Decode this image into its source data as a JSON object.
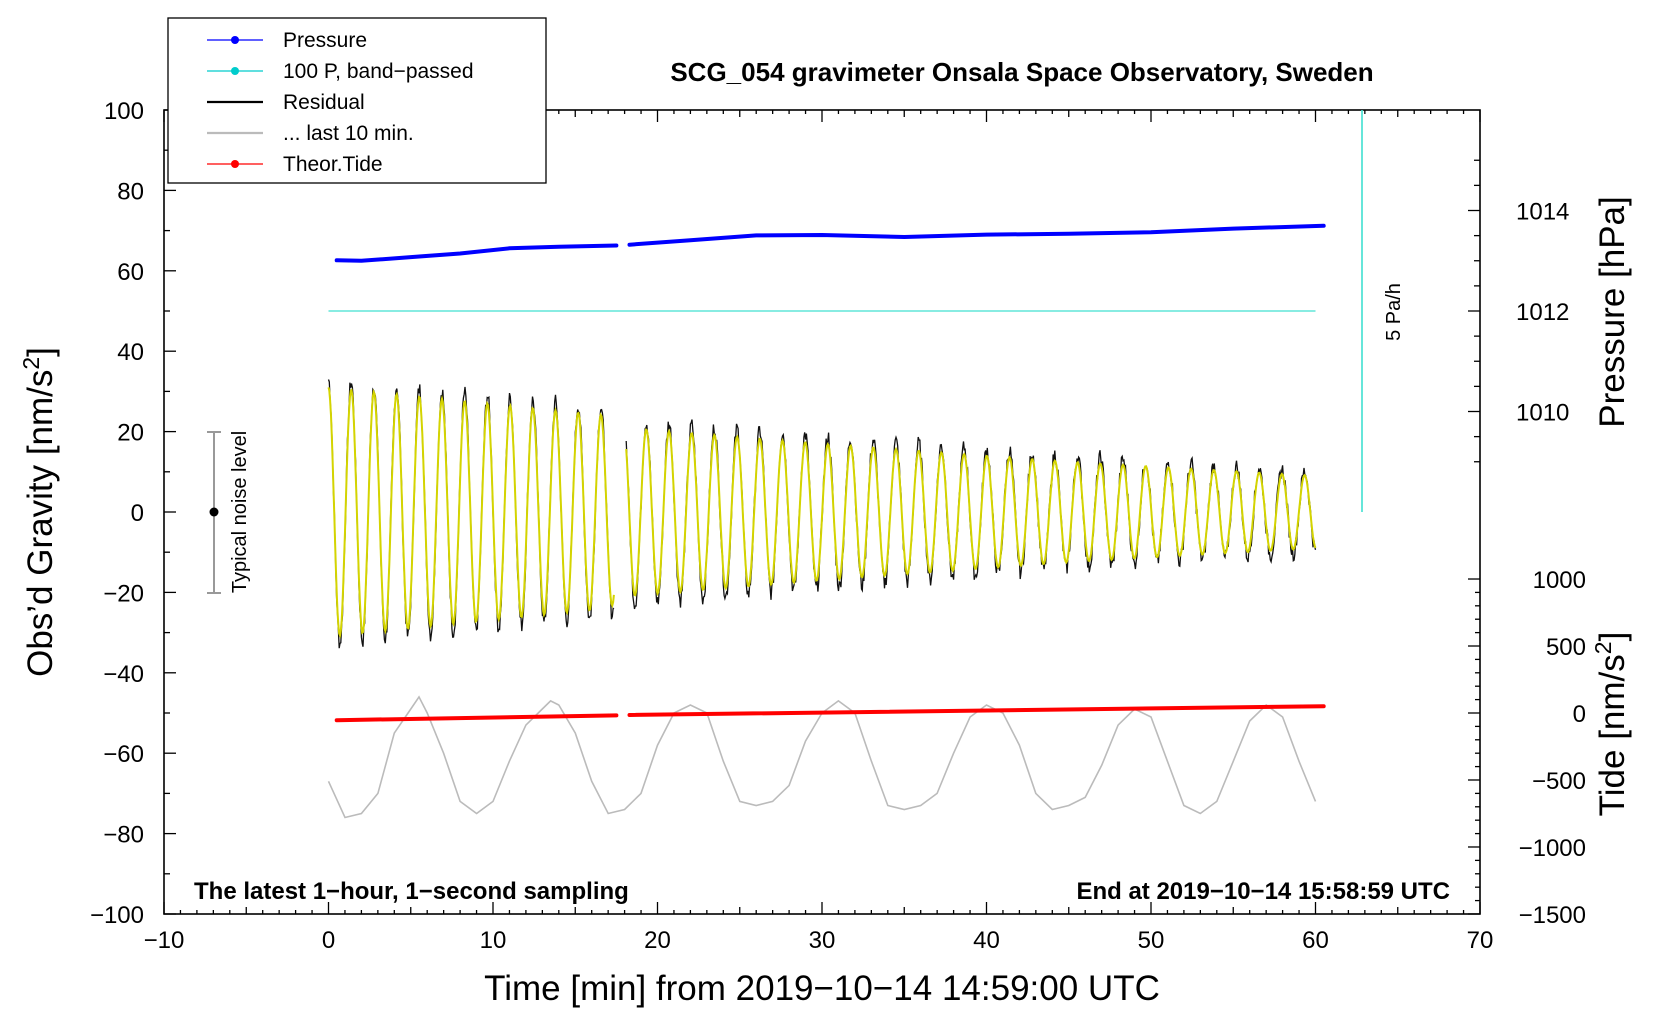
{
  "chart_data": {
    "type": "line",
    "title": "SCG_054 gravimeter Onsala Space Observatory, Sweden",
    "xlabel": "Time [min] from 2019−10−14 14:59:00 UTC",
    "ylabel_left": "Obs’d Gravity [nm/s",
    "ylabel_left_sup": "2",
    "ylabel_left_end": "]",
    "ylabel_right_pressure": "Pressure [hPa]",
    "ylabel_right_tide": "Tide [nm/s",
    "ylabel_right_tide_sup": "2",
    "ylabel_right_tide_end": "]",
    "xlim": [
      -10,
      70
    ],
    "ylim": [
      -100,
      100
    ],
    "x_ticks": [
      -10,
      0,
      10,
      20,
      30,
      40,
      50,
      60,
      70
    ],
    "x_tick_labels": [
      "−10",
      "0",
      "10",
      "20",
      "30",
      "40",
      "50",
      "60",
      "70"
    ],
    "y_ticks": [
      -100,
      -80,
      -60,
      -40,
      -20,
      0,
      20,
      40,
      60,
      80,
      100
    ],
    "y_tick_labels": [
      "−100",
      "−80",
      "−60",
      "−40",
      "−20",
      "0",
      "20",
      "40",
      "60",
      "80",
      "100"
    ],
    "pressure_axis": {
      "ticks": [
        1010,
        1012,
        1014
      ],
      "tick_labels": [
        "1010",
        "1012",
        "1014"
      ],
      "gravity_at_1012": 50,
      "gravity_per_hPa": 12.5
    },
    "tide_axis": {
      "ticks": [
        -1500,
        -1000,
        -500,
        0,
        500,
        1000
      ],
      "tick_labels": [
        "−1500",
        "−1000",
        "−500",
        "0",
        "500",
        "1000"
      ],
      "gravity_at_0": -50,
      "gravity_per_unit": 0.03333
    },
    "legend": [
      {
        "label": "Pressure",
        "color": "#0000ff",
        "marker": true
      },
      {
        "label": "100 P, band−passed",
        "color": "#00cccc",
        "marker": true
      },
      {
        "label": "Residual",
        "color": "#000000",
        "marker": false
      },
      {
        "label": "... last 10 min.",
        "color": "#bbbbbb",
        "marker": false
      },
      {
        "label": "Theor.Tide",
        "color": "#ff0000",
        "marker": true
      }
    ],
    "annotations": {
      "left_note": "The latest 1−hour, 1−second sampling",
      "right_note": "End at 2019−10−14 15:58:59 UTC",
      "noise_label": "Typical noise level",
      "rate_label": "5 Pa/h"
    },
    "series": [
      {
        "name": "Pressure",
        "color": "#0000ff",
        "axis": "pressure",
        "segments": [
          {
            "x": [
              0.5,
              2,
              5,
              8,
              11,
              14,
              17.5
            ],
            "y": [
              62.6,
              62.5,
              63.4,
              64.3,
              65.6,
              66.0,
              66.3
            ]
          },
          {
            "x": [
              18.3,
              22,
              26,
              30,
              35,
              40,
              45,
              50,
              55,
              60.5
            ],
            "y": [
              66.5,
              67.6,
              68.8,
              68.9,
              68.4,
              69.0,
              69.2,
              69.6,
              70.5,
              71.2
            ]
          }
        ]
      },
      {
        "name": "100 P, band−passed",
        "color": "#40e0d0",
        "axis": "gravity",
        "x": [
          0,
          60
        ],
        "y": [
          50,
          50
        ]
      },
      {
        "name": "Residual",
        "color": "#111111",
        "axis": "gravity",
        "oscillation": {
          "period_min": 1.38,
          "gap": [
            17.4,
            18.1
          ],
          "amplitude": {
            "x": [
              0,
              17,
              18,
              30,
              45,
              60
            ],
            "y": [
              33,
              26,
              23,
              19,
              14,
              10
            ]
          }
        }
      },
      {
        "name": "Residual filtered",
        "color": "#d4d400",
        "axis": "gravity",
        "oscillation": {
          "period_min": 1.38,
          "gap": [
            17.4,
            18.1
          ],
          "amplitude": {
            "x": [
              0,
              17,
              18,
              30,
              45,
              60
            ],
            "y": [
              31,
              24,
              21,
              17,
              12.5,
              9
            ]
          }
        }
      },
      {
        "name": "... last 10 min.",
        "color": "#bbbbbb",
        "axis": "gravity",
        "x": [
          0,
          1,
          2,
          3,
          4,
          5,
          5.5,
          6,
          7,
          8,
          9,
          10,
          11,
          12,
          13,
          13.5,
          14,
          15,
          16,
          17,
          18,
          19,
          20,
          21,
          22,
          23,
          24,
          25,
          26,
          27,
          28,
          29,
          30,
          31,
          32,
          33,
          34,
          35,
          36,
          37,
          38,
          39,
          40,
          41,
          42,
          43,
          44,
          45,
          46,
          47,
          48,
          49,
          50,
          51,
          52,
          53,
          54,
          55,
          56,
          57,
          58,
          59,
          60
        ],
        "y": [
          -67,
          -76,
          -75,
          -70,
          -55,
          -49,
          -46,
          -50,
          -60,
          -72,
          -75,
          -72,
          -62,
          -53,
          -49,
          -47,
          -48,
          -55,
          -67,
          -75,
          -74,
          -70,
          -58,
          -50,
          -48,
          -50,
          -62,
          -72,
          -73,
          -72,
          -68,
          -57,
          -50,
          -47,
          -50,
          -62,
          -73,
          -74,
          -73,
          -70,
          -60,
          -51,
          -48,
          -50,
          -58,
          -70,
          -74,
          -73,
          -71,
          -63,
          -53,
          -49,
          -51,
          -62,
          -73,
          -75,
          -72,
          -62,
          -52,
          -48,
          -51,
          -62,
          -72
        ]
      },
      {
        "name": "Theor.Tide",
        "color": "#ff0000",
        "axis": "tide",
        "segments": [
          {
            "x": [
              0.5,
              17.5
            ],
            "y": [
              -51.8,
              -50.6
            ]
          },
          {
            "x": [
              18.3,
              60.5
            ],
            "y": [
              -50.5,
              -48.3
            ]
          }
        ]
      }
    ]
  }
}
